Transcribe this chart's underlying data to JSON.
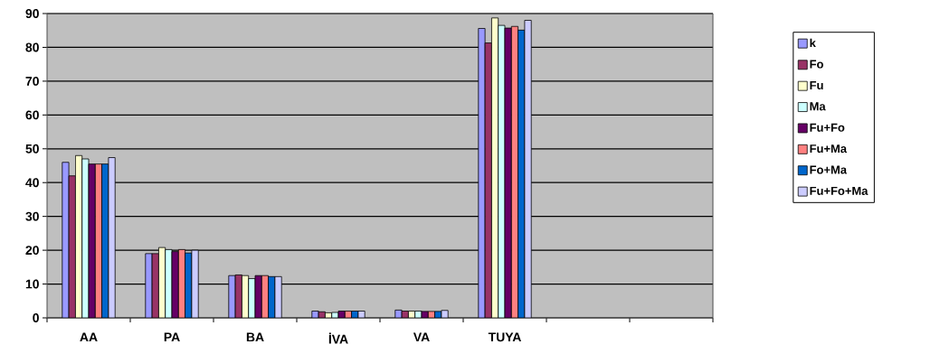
{
  "chart_data": {
    "type": "bar",
    "categories": [
      "AA",
      "PA",
      "BA",
      "İVA",
      "VA",
      "TUYA",
      null,
      null
    ],
    "series": [
      {
        "name": "k",
        "color": "#9999ff",
        "values": [
          46,
          19,
          12.5,
          2,
          2.3,
          85.6,
          null,
          null
        ]
      },
      {
        "name": "Fo",
        "color": "#993366",
        "values": [
          42,
          19,
          12.7,
          1.8,
          2,
          81.3,
          null,
          null
        ]
      },
      {
        "name": "Fu",
        "color": "#ffffcc",
        "values": [
          48,
          20.8,
          12.5,
          1.5,
          2,
          88.7,
          null,
          null
        ]
      },
      {
        "name": "Ma",
        "color": "#ccffff",
        "values": [
          47,
          20.2,
          11.6,
          1.6,
          2,
          86.5,
          null,
          null
        ]
      },
      {
        "name": "Fu+Fo",
        "color": "#660066",
        "values": [
          45.5,
          19.6,
          12.5,
          2,
          1.9,
          85.7,
          null,
          null
        ]
      },
      {
        "name": "Fu+Ma",
        "color": "#ff8080",
        "values": [
          45.5,
          20.2,
          12.5,
          2,
          1.9,
          86.2,
          null,
          null
        ]
      },
      {
        "name": "Fo+Ma",
        "color": "#0066cc",
        "values": [
          45.5,
          19.2,
          12.2,
          2,
          1.9,
          85.1,
          null,
          null
        ]
      },
      {
        "name": "Fu+Fo+Ma",
        "color": "#ccccff",
        "values": [
          47.4,
          20,
          12.2,
          2,
          2.2,
          88,
          null,
          null
        ]
      }
    ],
    "ylim": [
      0,
      90
    ],
    "yticks": [
      0,
      10,
      20,
      30,
      40,
      50,
      60,
      70,
      80,
      90
    ],
    "grid": "y",
    "legend": "right"
  }
}
